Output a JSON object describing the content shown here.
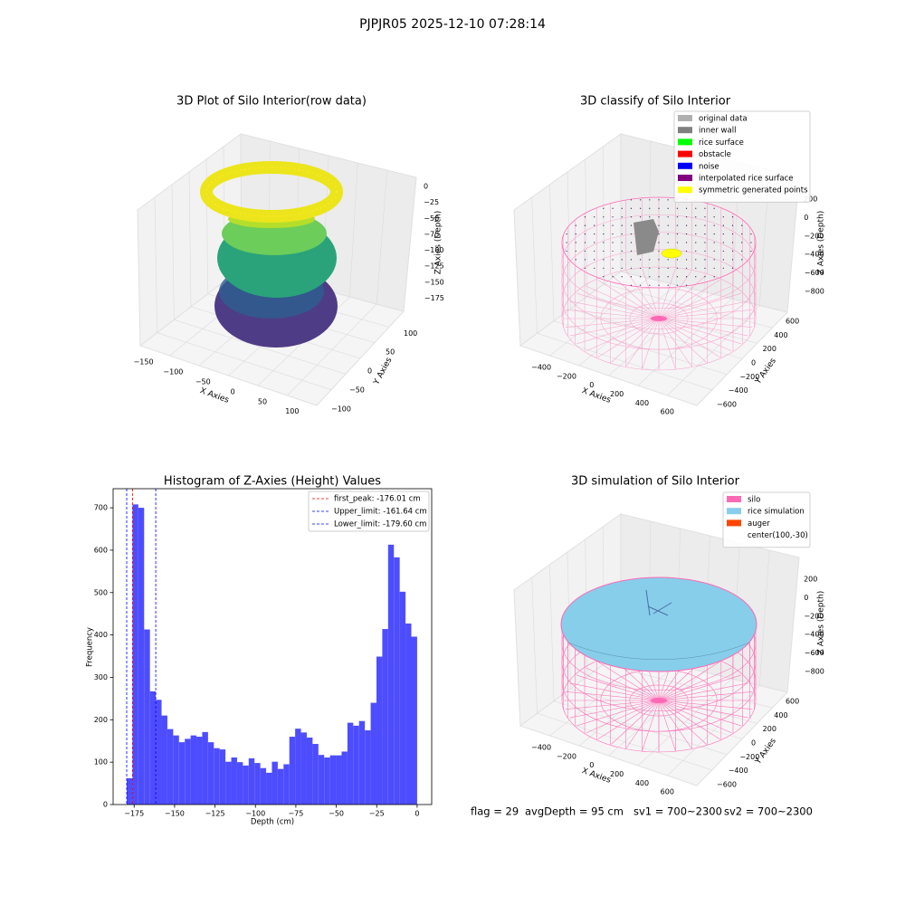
{
  "title": "PJPJR05 2025-12-10 07:28:14",
  "footer": [
    "flag = 29",
    "avgDepth = 95 cm",
    "sv1 = 700~2300",
    "sv2 = 700~2300"
  ],
  "chart_data": [
    {
      "type": "scatter3d",
      "title": "3D Plot of Silo Interior(row data)",
      "x_label": "X Axies",
      "y_label": "Y Axies",
      "z_label": "Z Axies (Depth)",
      "xlim": [
        -160,
        120
      ],
      "ylim": [
        -110,
        120
      ],
      "zlim": [
        -190,
        10
      ],
      "xticks": [
        {
          "value": -150,
          "label": "−150"
        },
        {
          "value": -100,
          "label": "−100"
        },
        {
          "value": -50,
          "label": "−50"
        },
        0,
        50,
        100
      ],
      "yticks": [
        {
          "value": -100,
          "label": "−100"
        },
        {
          "value": -50,
          "label": "−50"
        },
        0,
        50,
        100
      ],
      "zticks": [
        0,
        {
          "value": -25,
          "label": "−25"
        },
        {
          "value": -50,
          "label": "−50"
        },
        {
          "value": -75,
          "label": "−75"
        },
        {
          "value": -100,
          "label": "−100"
        },
        {
          "value": -125,
          "label": "−125"
        },
        {
          "value": -150,
          "label": "−150"
        },
        {
          "value": -175,
          "label": "−175"
        }
      ]
    },
    {
      "type": "scatter3d",
      "title": "3D classify of Silo Interior",
      "x_label": "X Axies",
      "y_label": "Y Axies",
      "z_label": "Z Axies (Depth)",
      "xlim": [
        -480,
        720
      ],
      "ylim": [
        -680,
        680
      ],
      "zlim": [
        -900,
        300
      ],
      "xticks": [
        {
          "value": -400,
          "label": "−400"
        },
        {
          "value": -200,
          "label": "−200"
        },
        0,
        200,
        400,
        600
      ],
      "yticks": [
        {
          "value": -600,
          "label": "−600"
        },
        {
          "value": -400,
          "label": "−400"
        },
        {
          "value": -200,
          "label": "−200"
        },
        0,
        200,
        400,
        600
      ],
      "zticks": [
        200,
        0,
        {
          "value": -200,
          "label": "−200"
        },
        {
          "value": -400,
          "label": "−400"
        },
        {
          "value": -600,
          "label": "−600"
        },
        {
          "value": -800,
          "label": "−800"
        }
      ],
      "legend": [
        {
          "name": "original data",
          "color": "#b0b0b0"
        },
        {
          "name": "inner wall",
          "color": "#808080"
        },
        {
          "name": "rice surface",
          "color": "#00ff00"
        },
        {
          "name": "obstacle",
          "color": "#ff0000"
        },
        {
          "name": "noise",
          "color": "#0000ff"
        },
        {
          "name": "interpolated rice surface",
          "color": "#800080"
        },
        {
          "name": "symmetric generated points",
          "color": "#ffff00"
        }
      ]
    },
    {
      "type": "histogram",
      "title": "Histogram of Z-Axies (Height) Values",
      "x_label": "Depth (cm)",
      "y_label": "Frequency",
      "color": "#4d4dff",
      "bins": [
        -179.6,
        -176.008,
        -172.416,
        -168.824,
        -165.232,
        -161.64,
        -158.048,
        -154.456,
        -150.864,
        -147.272,
        -143.68,
        -140.088,
        -136.496,
        -132.904,
        -129.312,
        -125.72,
        -122.128,
        -118.536,
        -114.944,
        -111.352,
        -107.76,
        -104.168,
        -100.576,
        -96.984,
        -93.392,
        -89.8,
        -86.208,
        -82.616,
        -79.024,
        -75.432,
        -71.84,
        -68.248,
        -64.656,
        -61.064,
        -57.472,
        -53.88,
        -50.288,
        -46.696,
        -43.104,
        -39.512,
        -35.92,
        -32.328,
        -28.736,
        -25.144,
        -21.552,
        -17.96,
        -14.368,
        -10.776,
        -7.184,
        -3.592,
        0
      ],
      "values": [
        62,
        708,
        700,
        413,
        267,
        247,
        210,
        178,
        163,
        147,
        155,
        163,
        160,
        171,
        147,
        133,
        130,
        101,
        111,
        100,
        92,
        109,
        98,
        86,
        75,
        101,
        84,
        95,
        160,
        179,
        170,
        158,
        143,
        117,
        111,
        116,
        116,
        125,
        193,
        186,
        197,
        175,
        240,
        349,
        414,
        613,
        583,
        502,
        427,
        396
      ],
      "vlines": [
        {
          "name": "first_peak: -176.01 cm",
          "value": -176.01,
          "color": "#ff0000"
        },
        {
          "name": "Upper_limit: -161.64 cm",
          "value": -161.64,
          "color": "#0000ff"
        },
        {
          "name": "Lower_limit: -179.60 cm",
          "value": -179.6,
          "color": "#0000ff"
        }
      ],
      "xlim": [
        -188,
        9
      ],
      "ylim": [
        0,
        745
      ],
      "xticks": [
        {
          "value": -175,
          "label": "−175"
        },
        {
          "value": -150,
          "label": "−150"
        },
        {
          "value": -125,
          "label": "−125"
        },
        {
          "value": -100,
          "label": "−100"
        },
        {
          "value": -75,
          "label": "−75"
        },
        {
          "value": -50,
          "label": "−50"
        },
        {
          "value": -25,
          "label": "−25"
        },
        0
      ],
      "yticks": [
        0,
        100,
        200,
        300,
        400,
        500,
        600,
        700
      ]
    },
    {
      "type": "surface3d",
      "title": "3D simulation of Silo Interior",
      "x_label": "X Axies",
      "y_label": "Y Axies",
      "z_label": "Z Axies (Depth)",
      "xlim": [
        -480,
        720
      ],
      "ylim": [
        -680,
        680
      ],
      "zlim": [
        -900,
        300
      ],
      "xticks": [
        {
          "value": -400,
          "label": "−400"
        },
        {
          "value": -200,
          "label": "−200"
        },
        0,
        200,
        400,
        600
      ],
      "yticks": [
        {
          "value": -600,
          "label": "−600"
        },
        {
          "value": -400,
          "label": "−400"
        },
        {
          "value": -200,
          "label": "−200"
        },
        0,
        200,
        400,
        600
      ],
      "zticks": [
        200,
        0,
        {
          "value": -200,
          "label": "−200"
        },
        {
          "value": -400,
          "label": "−400"
        },
        {
          "value": -600,
          "label": "−600"
        },
        {
          "value": -800,
          "label": "−800"
        }
      ],
      "legend": [
        {
          "name": "silo",
          "color": "#ff69b4"
        },
        {
          "name": "rice simulation",
          "color": "#87ceeb"
        },
        {
          "name": "auger",
          "color": "#ff4500"
        },
        {
          "name": "center(100,-30)",
          "color": "#ffffff"
        }
      ]
    }
  ]
}
